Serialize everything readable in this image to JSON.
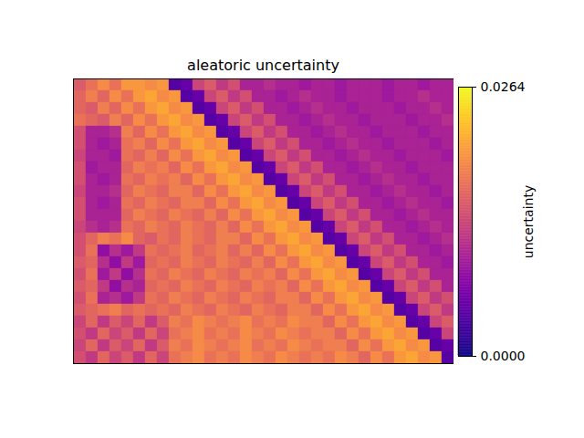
{
  "chart_data": {
    "type": "heatmap",
    "title": "aleatoric uncertainty",
    "tick_labels": false,
    "color": "plasma",
    "cells": [
      [
        0.015,
        0.017,
        0.019,
        0.017,
        0.02,
        0.02,
        0.019,
        0.02,
        0.004,
        0.005,
        0.013,
        0.015,
        0.012,
        0.014,
        0.01,
        0.01,
        0.011,
        0.01,
        0.01,
        0.009,
        0.01,
        0.01,
        0.009,
        0.01,
        0.01,
        0.01,
        0.009,
        0.01,
        0.01,
        0.009,
        0.01,
        0.01
      ],
      [
        0.016,
        0.018,
        0.016,
        0.019,
        0.017,
        0.02,
        0.021,
        0.019,
        0.02,
        0.004,
        0.005,
        0.013,
        0.015,
        0.012,
        0.014,
        0.01,
        0.01,
        0.009,
        0.01,
        0.011,
        0.01,
        0.01,
        0.009,
        0.01,
        0.01,
        0.01,
        0.009,
        0.01,
        0.01,
        0.011,
        0.01,
        0.01
      ],
      [
        0.016,
        0.015,
        0.018,
        0.016,
        0.019,
        0.017,
        0.02,
        0.021,
        0.019,
        0.02,
        0.004,
        0.005,
        0.013,
        0.015,
        0.012,
        0.014,
        0.01,
        0.01,
        0.009,
        0.01,
        0.011,
        0.01,
        0.01,
        0.009,
        0.01,
        0.01,
        0.01,
        0.009,
        0.01,
        0.01,
        0.011,
        0.01
      ],
      [
        0.017,
        0.016,
        0.015,
        0.018,
        0.016,
        0.019,
        0.017,
        0.02,
        0.021,
        0.019,
        0.02,
        0.004,
        0.005,
        0.013,
        0.015,
        0.012,
        0.014,
        0.01,
        0.01,
        0.009,
        0.01,
        0.011,
        0.01,
        0.01,
        0.009,
        0.01,
        0.01,
        0.01,
        0.009,
        0.01,
        0.01,
        0.011
      ],
      [
        0.014,
        0.01,
        0.01,
        0.011,
        0.018,
        0.016,
        0.019,
        0.017,
        0.02,
        0.021,
        0.019,
        0.02,
        0.004,
        0.005,
        0.013,
        0.015,
        0.012,
        0.014,
        0.01,
        0.01,
        0.009,
        0.01,
        0.011,
        0.01,
        0.01,
        0.009,
        0.01,
        0.01,
        0.01,
        0.009,
        0.01,
        0.01
      ],
      [
        0.014,
        0.01,
        0.009,
        0.01,
        0.017,
        0.018,
        0.016,
        0.019,
        0.017,
        0.02,
        0.021,
        0.019,
        0.02,
        0.004,
        0.005,
        0.013,
        0.015,
        0.012,
        0.014,
        0.01,
        0.01,
        0.009,
        0.01,
        0.011,
        0.01,
        0.01,
        0.009,
        0.01,
        0.01,
        0.01,
        0.009,
        0.01
      ],
      [
        0.013,
        0.01,
        0.01,
        0.009,
        0.017,
        0.016,
        0.018,
        0.016,
        0.019,
        0.017,
        0.02,
        0.021,
        0.019,
        0.02,
        0.004,
        0.005,
        0.013,
        0.015,
        0.012,
        0.014,
        0.01,
        0.01,
        0.009,
        0.01,
        0.011,
        0.01,
        0.01,
        0.009,
        0.01,
        0.01,
        0.01,
        0.009
      ],
      [
        0.014,
        0.009,
        0.01,
        0.01,
        0.016,
        0.018,
        0.017,
        0.018,
        0.016,
        0.019,
        0.017,
        0.02,
        0.021,
        0.019,
        0.02,
        0.004,
        0.005,
        0.013,
        0.015,
        0.012,
        0.014,
        0.01,
        0.01,
        0.009,
        0.01,
        0.011,
        0.01,
        0.01,
        0.009,
        0.01,
        0.01,
        0.01
      ],
      [
        0.014,
        0.01,
        0.009,
        0.01,
        0.017,
        0.016,
        0.018,
        0.017,
        0.018,
        0.016,
        0.019,
        0.017,
        0.02,
        0.021,
        0.019,
        0.02,
        0.004,
        0.005,
        0.013,
        0.015,
        0.012,
        0.014,
        0.01,
        0.01,
        0.009,
        0.01,
        0.011,
        0.01,
        0.01,
        0.009,
        0.01,
        0.01
      ],
      [
        0.013,
        0.01,
        0.01,
        0.011,
        0.016,
        0.018,
        0.017,
        0.016,
        0.018,
        0.018,
        0.016,
        0.019,
        0.017,
        0.02,
        0.021,
        0.019,
        0.02,
        0.004,
        0.005,
        0.013,
        0.015,
        0.012,
        0.014,
        0.01,
        0.01,
        0.009,
        0.01,
        0.011,
        0.01,
        0.01,
        0.009,
        0.01
      ],
      [
        0.014,
        0.01,
        0.009,
        0.01,
        0.017,
        0.016,
        0.018,
        0.017,
        0.016,
        0.018,
        0.018,
        0.016,
        0.019,
        0.017,
        0.02,
        0.021,
        0.019,
        0.02,
        0.004,
        0.005,
        0.013,
        0.015,
        0.012,
        0.014,
        0.01,
        0.01,
        0.009,
        0.01,
        0.011,
        0.01,
        0.01,
        0.009
      ],
      [
        0.014,
        0.01,
        0.01,
        0.01,
        0.016,
        0.018,
        0.017,
        0.016,
        0.018,
        0.017,
        0.016,
        0.018,
        0.016,
        0.019,
        0.017,
        0.02,
        0.021,
        0.019,
        0.02,
        0.004,
        0.005,
        0.013,
        0.015,
        0.012,
        0.014,
        0.01,
        0.01,
        0.009,
        0.01,
        0.011,
        0.01,
        0.01
      ],
      [
        0.013,
        0.011,
        0.01,
        0.011,
        0.017,
        0.016,
        0.018,
        0.017,
        0.016,
        0.018,
        0.017,
        0.016,
        0.018,
        0.016,
        0.019,
        0.017,
        0.02,
        0.021,
        0.019,
        0.02,
        0.004,
        0.005,
        0.013,
        0.015,
        0.012,
        0.014,
        0.01,
        0.01,
        0.009,
        0.01,
        0.011,
        0.01
      ],
      [
        0.014,
        0.016,
        0.018,
        0.017,
        0.019,
        0.016,
        0.015,
        0.017,
        0.016,
        0.018,
        0.017,
        0.016,
        0.018,
        0.018,
        0.016,
        0.019,
        0.017,
        0.02,
        0.021,
        0.019,
        0.02,
        0.004,
        0.005,
        0.013,
        0.015,
        0.012,
        0.014,
        0.01,
        0.01,
        0.009,
        0.01,
        0.011
      ],
      [
        0.014,
        0.017,
        0.008,
        0.011,
        0.009,
        0.012,
        0.017,
        0.016,
        0.017,
        0.018,
        0.016,
        0.017,
        0.018,
        0.016,
        0.018,
        0.016,
        0.019,
        0.017,
        0.02,
        0.021,
        0.019,
        0.02,
        0.004,
        0.005,
        0.013,
        0.015,
        0.012,
        0.014,
        0.01,
        0.01,
        0.009,
        0.01
      ],
      [
        0.015,
        0.016,
        0.011,
        0.008,
        0.012,
        0.009,
        0.016,
        0.017,
        0.016,
        0.018,
        0.017,
        0.016,
        0.018,
        0.017,
        0.016,
        0.018,
        0.016,
        0.019,
        0.017,
        0.02,
        0.021,
        0.019,
        0.02,
        0.004,
        0.005,
        0.013,
        0.015,
        0.012,
        0.014,
        0.01,
        0.01,
        0.009
      ],
      [
        0.014,
        0.017,
        0.009,
        0.012,
        0.008,
        0.011,
        0.017,
        0.016,
        0.018,
        0.017,
        0.016,
        0.018,
        0.017,
        0.016,
        0.018,
        0.017,
        0.018,
        0.016,
        0.019,
        0.017,
        0.02,
        0.021,
        0.019,
        0.02,
        0.004,
        0.005,
        0.013,
        0.015,
        0.012,
        0.014,
        0.01,
        0.01
      ],
      [
        0.015,
        0.016,
        0.012,
        0.008,
        0.011,
        0.01,
        0.016,
        0.017,
        0.016,
        0.018,
        0.017,
        0.016,
        0.018,
        0.017,
        0.016,
        0.018,
        0.017,
        0.018,
        0.016,
        0.019,
        0.017,
        0.02,
        0.021,
        0.019,
        0.02,
        0.004,
        0.005,
        0.013,
        0.015,
        0.012,
        0.014,
        0.01
      ],
      [
        0.014,
        0.017,
        0.01,
        0.011,
        0.009,
        0.012,
        0.017,
        0.016,
        0.018,
        0.017,
        0.016,
        0.018,
        0.017,
        0.016,
        0.018,
        0.017,
        0.016,
        0.018,
        0.018,
        0.016,
        0.019,
        0.017,
        0.02,
        0.021,
        0.019,
        0.02,
        0.004,
        0.005,
        0.013,
        0.015,
        0.012,
        0.014
      ],
      [
        0.015,
        0.016,
        0.017,
        0.018,
        0.016,
        0.017,
        0.016,
        0.017,
        0.016,
        0.018,
        0.017,
        0.016,
        0.018,
        0.017,
        0.016,
        0.018,
        0.017,
        0.016,
        0.018,
        0.018,
        0.016,
        0.019,
        0.017,
        0.02,
        0.021,
        0.019,
        0.02,
        0.004,
        0.005,
        0.013,
        0.015,
        0.012
      ],
      [
        0.013,
        0.016,
        0.012,
        0.015,
        0.013,
        0.016,
        0.012,
        0.015,
        0.018,
        0.017,
        0.019,
        0.018,
        0.017,
        0.018,
        0.019,
        0.017,
        0.018,
        0.017,
        0.019,
        0.018,
        0.018,
        0.016,
        0.019,
        0.017,
        0.02,
        0.021,
        0.019,
        0.02,
        0.004,
        0.005,
        0.013,
        0.015
      ],
      [
        0.014,
        0.012,
        0.016,
        0.013,
        0.015,
        0.012,
        0.016,
        0.013,
        0.017,
        0.018,
        0.019,
        0.017,
        0.018,
        0.017,
        0.019,
        0.018,
        0.017,
        0.019,
        0.018,
        0.017,
        0.018,
        0.018,
        0.016,
        0.019,
        0.017,
        0.02,
        0.021,
        0.019,
        0.02,
        0.004,
        0.005,
        0.013
      ],
      [
        0.013,
        0.016,
        0.012,
        0.015,
        0.013,
        0.016,
        0.012,
        0.015,
        0.018,
        0.017,
        0.019,
        0.018,
        0.017,
        0.018,
        0.019,
        0.017,
        0.018,
        0.017,
        0.019,
        0.018,
        0.017,
        0.018,
        0.018,
        0.016,
        0.019,
        0.017,
        0.02,
        0.021,
        0.019,
        0.02,
        0.004,
        0.005
      ],
      [
        0.014,
        0.012,
        0.016,
        0.013,
        0.015,
        0.012,
        0.016,
        0.013,
        0.017,
        0.018,
        0.019,
        0.017,
        0.018,
        0.017,
        0.019,
        0.018,
        0.017,
        0.019,
        0.018,
        0.017,
        0.018,
        0.017,
        0.019,
        0.018,
        0.016,
        0.019,
        0.017,
        0.02,
        0.021,
        0.019,
        0.02,
        0.004
      ]
    ],
    "colorbar": {
      "label": "uncertainty",
      "range": [
        0,
        0.0264
      ],
      "ticks": [
        {
          "value": 0,
          "label": "0.0000"
        },
        {
          "value": 0.0264,
          "label": "0.0264"
        }
      ]
    }
  }
}
